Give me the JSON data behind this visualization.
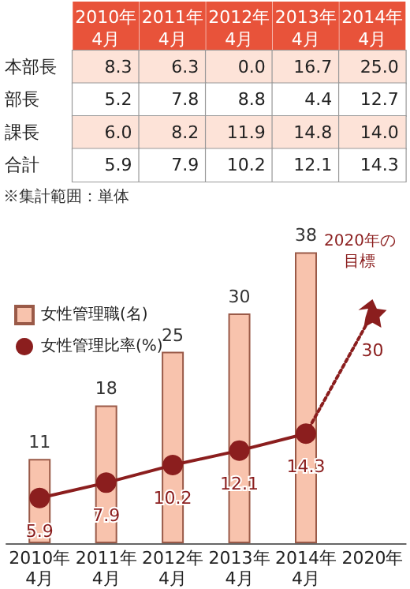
{
  "chart_data": [
    {
      "type": "heatmap",
      "categories": [
        "2010年\n4月",
        "2011年\n4月",
        "2012年\n4月",
        "2013年\n4月",
        "2014年\n4月"
      ],
      "y_categories": [
        "本部長",
        "部長",
        "課長",
        "合計"
      ],
      "data_labels": true,
      "cells": [
        [
          8.3,
          6.3,
          0.0,
          16.7,
          25.0
        ],
        [
          5.2,
          7.8,
          8.8,
          4.4,
          12.7
        ],
        [
          6.0,
          8.2,
          11.9,
          14.8,
          14.0
        ],
        [
          5.9,
          7.9,
          10.2,
          12.1,
          14.3
        ]
      ],
      "cell_labels": [
        [
          "8.3",
          "6.3",
          "0.0",
          "16.7",
          "25.0"
        ],
        [
          "5.2",
          "7.8",
          "8.8",
          "4.4",
          "12.7"
        ],
        [
          "6.0",
          "8.2",
          "11.9",
          "14.8",
          "14.0"
        ],
        [
          "5.9",
          "7.9",
          "10.2",
          "12.1",
          "14.3"
        ]
      ],
      "annotations": [
        "※集計範囲：単体"
      ]
    },
    {
      "type": "bar",
      "categories": [
        "2010年\n4月",
        "2011年\n4月",
        "2012年\n4月",
        "2013年\n4月",
        "2014年\n4月",
        "2020年"
      ],
      "series": [
        {
          "name": "女性管理職(名)",
          "type": "bar",
          "color": "#f8c3ad",
          "values": [
            11,
            18,
            25,
            30,
            38,
            null
          ]
        },
        {
          "name": "女性管理比率(%)",
          "type": "line",
          "color": "#8b1e1e",
          "marker": "circle",
          "line_style": "solid",
          "values": [
            5.9,
            7.9,
            10.2,
            12.1,
            14.3,
            null
          ]
        },
        {
          "type": "line",
          "color": "#8b1e1e",
          "marker": "none",
          "line_style": "dotted",
          "values": [
            null,
            null,
            null,
            null,
            14.3,
            30
          ],
          "value_labels": [
            null,
            null,
            null,
            null,
            null,
            null
          ]
        },
        {
          "type": "scatter",
          "color": "#8b1e1e",
          "marker": "star",
          "values": [
            null,
            null,
            null,
            null,
            null,
            30
          ]
        }
      ],
      "tick_labels": "x",
      "legend": "top left",
      "data_labels": true,
      "annotations": [
        {
          "text": "2020年の目標",
          "x": "2020年",
          "y": 30
        }
      ]
    }
  ]
}
